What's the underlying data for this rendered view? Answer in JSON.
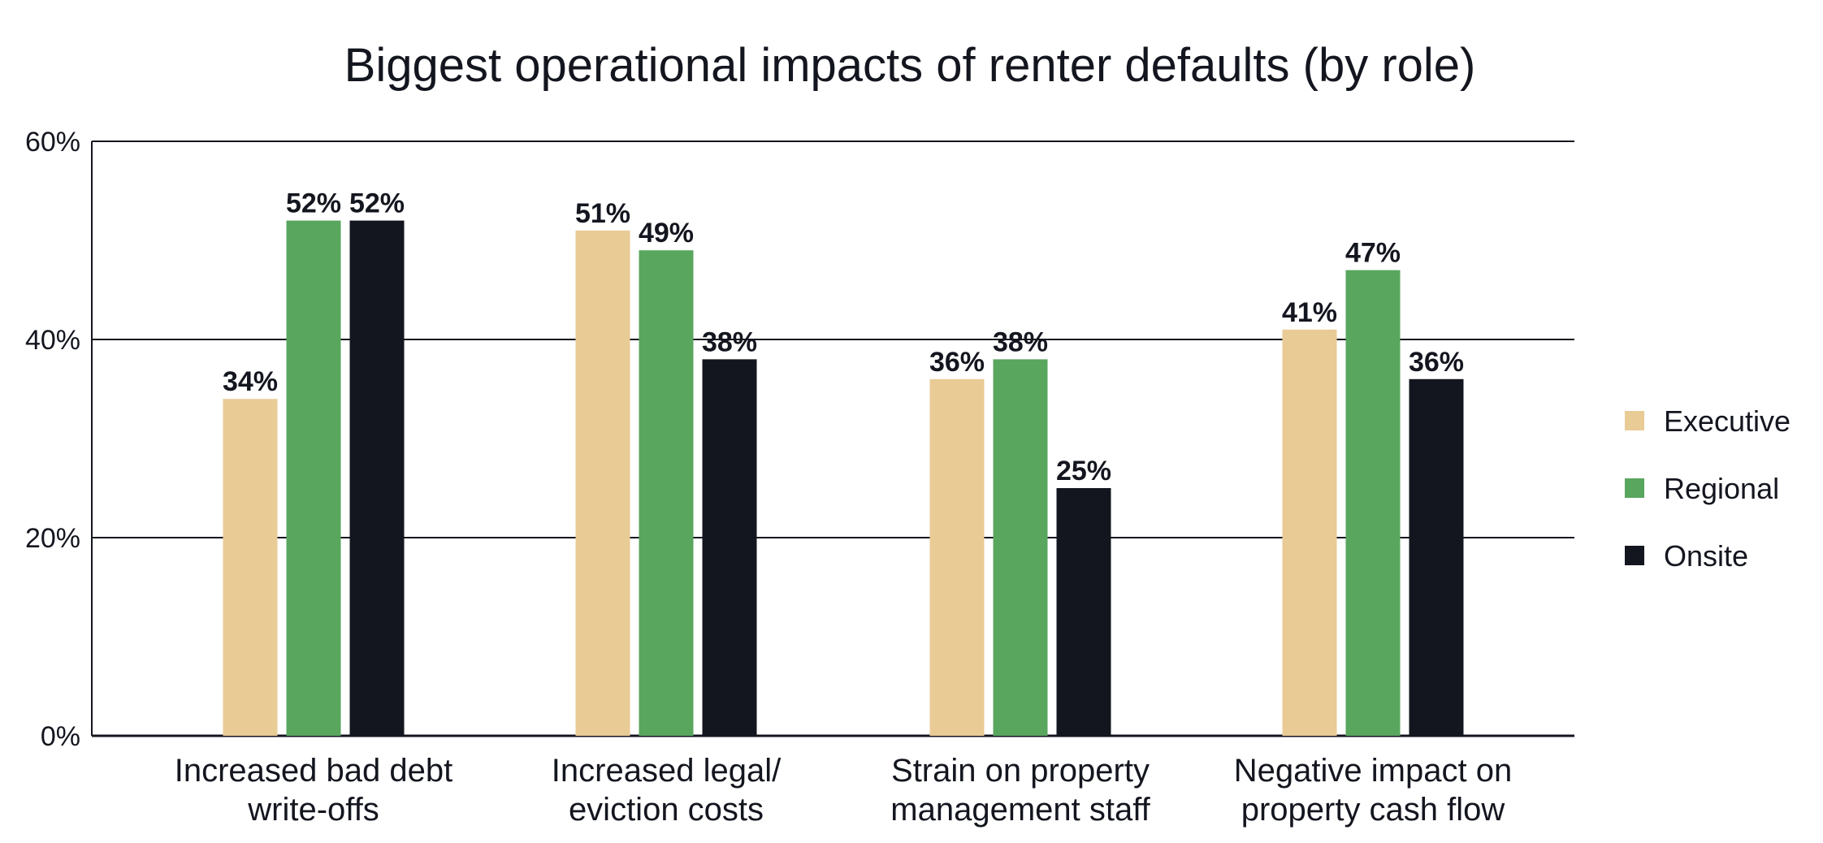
{
  "chart_data": {
    "type": "bar",
    "title": "Biggest operational impacts of renter defaults (by role)",
    "categories": [
      [
        "Increased bad debt",
        "write-offs"
      ],
      [
        "Increased legal/",
        "eviction costs"
      ],
      [
        "Strain on property",
        "management staff"
      ],
      [
        "Negative impact on",
        "property cash flow"
      ]
    ],
    "series": [
      {
        "name": "Executive",
        "color": "#e9cb96",
        "values": [
          34,
          51,
          36,
          41
        ],
        "labels": [
          "34%",
          "51%",
          "36%",
          "41%"
        ]
      },
      {
        "name": "Regional",
        "color": "#59a65e",
        "values": [
          52,
          49,
          38,
          47
        ],
        "labels": [
          "52%",
          "49%",
          "38%",
          "47%"
        ]
      },
      {
        "name": "Onsite",
        "color": "#14161f",
        "values": [
          52,
          38,
          25,
          36
        ],
        "labels": [
          "52%",
          "38%",
          "25%",
          "36%"
        ]
      }
    ],
    "ylim": [
      0,
      60
    ],
    "yticks": [
      0,
      20,
      40,
      60
    ],
    "ytick_labels": [
      "0%",
      "20%",
      "40%",
      "60%"
    ],
    "xlabel": "",
    "ylabel": "",
    "grid": true,
    "legend_position": "right"
  }
}
